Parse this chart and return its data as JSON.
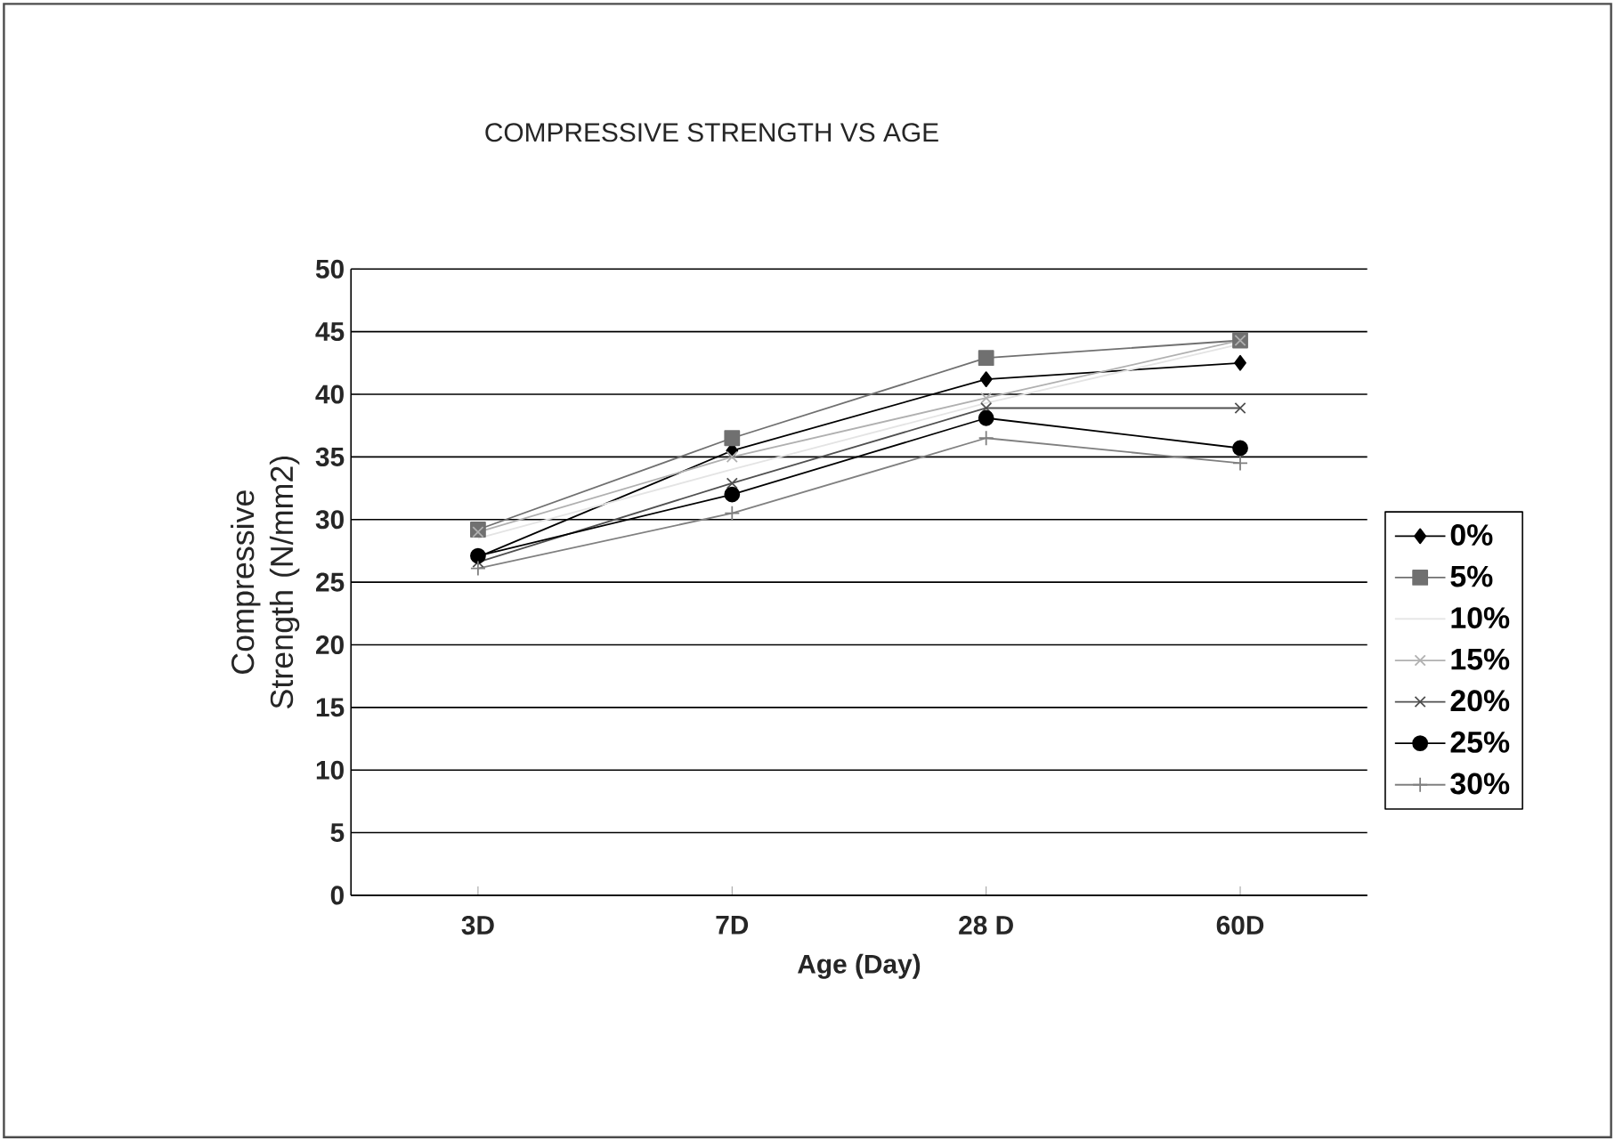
{
  "chart_data": {
    "type": "line",
    "title": "COMPRESSIVE STRENGTH VS AGE",
    "xlabel": "Age (Day)",
    "ylabel": "Compressive Strength (N/mm2)",
    "categories": [
      "3D",
      "7D",
      "28 D",
      "60D"
    ],
    "ylim": [
      0,
      50
    ],
    "yticks": [
      0,
      5,
      10,
      15,
      20,
      25,
      30,
      35,
      40,
      45,
      50
    ],
    "grid": "y",
    "legend": "right",
    "series": [
      {
        "name": "0%",
        "color": "#000000",
        "marker": "diamond",
        "values": [
          27,
          35.5,
          41.2,
          42.5
        ]
      },
      {
        "name": "5%",
        "color": "#707070",
        "marker": "square",
        "values": [
          29.2,
          36.5,
          42.9,
          44.3
        ]
      },
      {
        "name": "10%",
        "color": "#e4e4e4",
        "marker": "none",
        "values": [
          28.5,
          34,
          39.3,
          44
        ]
      },
      {
        "name": "15%",
        "color": "#b0b0b0",
        "marker": "cross",
        "values": [
          29,
          35,
          39.7,
          44.3
        ]
      },
      {
        "name": "20%",
        "color": "#505050",
        "marker": "cross",
        "values": [
          26.6,
          32.9,
          38.9,
          38.9
        ]
      },
      {
        "name": "25%",
        "color": "#000000",
        "marker": "circle",
        "values": [
          27.1,
          32,
          38.1,
          35.7
        ]
      },
      {
        "name": "30%",
        "color": "#808080",
        "marker": "plus",
        "values": [
          26.1,
          30.5,
          36.5,
          34.5
        ]
      }
    ]
  }
}
